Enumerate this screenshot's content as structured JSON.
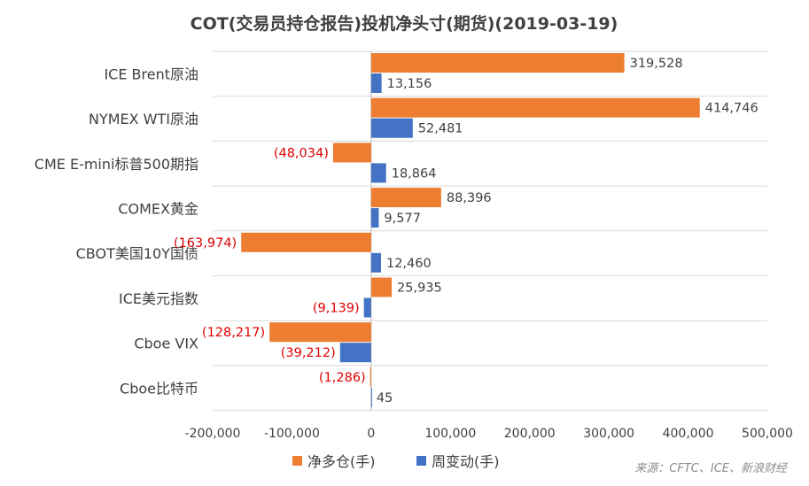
{
  "chart_data": {
    "type": "bar",
    "orientation": "horizontal",
    "title": "COT(交易员持仓报告)投机净头寸(期货)(2019-03-19)",
    "categories": [
      "ICE Brent原油",
      "NYMEX WTI原油",
      "CME E-mini标普500期指",
      "COMEX黄金",
      "CBOT美国10Y国债",
      "ICE美元指数",
      "Cboe VIX",
      "Cboe比特币"
    ],
    "series": [
      {
        "name": "净多仓(手)",
        "color": "#ed7d31",
        "values": [
          319528,
          414746,
          -48034,
          88396,
          -163974,
          25935,
          -128217,
          -1286
        ],
        "labels": [
          "319,528",
          "414,746",
          "(48,034)",
          "88,396",
          "(163,974)",
          "25,935",
          "(128,217)",
          "(1,286)"
        ]
      },
      {
        "name": "周变动(手)",
        "color": "#4472c4",
        "values": [
          13156,
          52481,
          18864,
          9577,
          12460,
          -9139,
          -39212,
          45
        ],
        "labels": [
          "13,156",
          "52,481",
          "18,864",
          "9,577",
          "12,460",
          "(9,139)",
          "(39,212)",
          "45"
        ]
      }
    ],
    "xlim": [
      -200000,
      500000
    ],
    "xticks": [
      -200000,
      -100000,
      0,
      100000,
      200000,
      300000,
      400000,
      500000
    ],
    "xtick_labels": [
      "-200,000",
      "-100,000",
      "0",
      "100,000",
      "200,000",
      "300,000",
      "400,000",
      "500,000"
    ],
    "negative_label_color": "#e00000",
    "legend_position": "bottom",
    "grid": "horizontal separators between categories",
    "source": "来源：CFTC、ICE、新浪财经"
  }
}
